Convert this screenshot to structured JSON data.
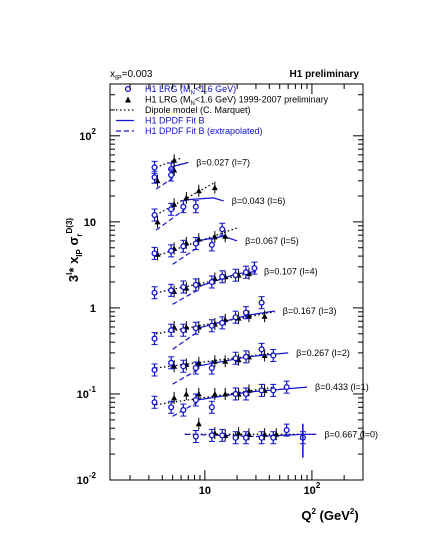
{
  "header": {
    "xpom_label": "x",
    "xpom_sub": "IP",
    "xpom_value": "=0.003",
    "experiment": "H1 preliminary"
  },
  "legend": [
    {
      "key": "lrg",
      "text": "H1 LRG (M",
      "sub": "N",
      "after": "<1.6 GeV)",
      "color": "#1010d0",
      "style": "circle"
    },
    {
      "key": "lrg0607",
      "text": "H1 LRG (M",
      "sub": "N",
      "after": "<1.6 GeV) 1999-2007 preliminary",
      "color": "#000000",
      "style": "triangle"
    },
    {
      "key": "dipole",
      "text": "Dipole model (C. Marquet)",
      "color": "#000000",
      "style": "dotted"
    },
    {
      "key": "fitb",
      "text": "H1 DPDF Fit B",
      "color": "#1010d0",
      "style": "solid"
    },
    {
      "key": "fitbext",
      "text": "H1 DPDF Fit B (extrapolated)",
      "color": "#1010d0",
      "style": "dashed"
    }
  ],
  "chart_data": {
    "type": "scatter",
    "title": "",
    "xlabel": "Q² (GeV²)",
    "ylabel": "3^l * x_IP σ_r^D(3)",
    "xscale": "log",
    "yscale": "log",
    "xlim": [
      1.3,
      300
    ],
    "ylim": [
      0.01,
      400
    ],
    "x_ticks": [
      {
        "v": 10,
        "label": "10"
      },
      {
        "v": 100,
        "label": "10",
        "sup": "2"
      }
    ],
    "y_ticks": [
      {
        "v": 0.01,
        "label": "10",
        "sup": "-2"
      },
      {
        "v": 0.1,
        "label": "10",
        "sup": "-1"
      },
      {
        "v": 1,
        "label": "1"
      },
      {
        "v": 10,
        "label": "10"
      },
      {
        "v": 100,
        "label": "10",
        "sup": "2"
      }
    ],
    "grid": false,
    "legend_position": "top-left",
    "groups": [
      {
        "label": "β=0.027 (l=7)",
        "blue": [
          [
            3.5,
            43
          ],
          [
            3.5,
            33
          ],
          [
            5,
            41
          ],
          [
            5,
            35
          ]
        ],
        "black": [
          [
            5,
            52
          ],
          [
            5,
            40
          ],
          [
            3.5,
            30
          ]
        ],
        "dipole": [
          [
            3.5,
            43
          ],
          [
            6,
            55
          ]
        ],
        "fit": [
          [
            5,
            44
          ],
          [
            7,
            49
          ]
        ],
        "fitext": [
          [
            3.5,
            24
          ],
          [
            5,
            32
          ]
        ]
      },
      {
        "label": "β=0.043 (l=6)",
        "blue": [
          [
            3.5,
            12
          ],
          [
            5,
            14
          ],
          [
            6.5,
            15
          ],
          [
            8.5,
            15
          ]
        ],
        "black": [
          [
            3.5,
            10
          ],
          [
            5,
            16
          ],
          [
            6.5,
            19
          ],
          [
            8.5,
            23
          ],
          [
            12,
            25
          ]
        ],
        "dipole": [
          [
            3.5,
            12
          ],
          [
            12,
            28
          ]
        ],
        "fit": [
          [
            6.5,
            18
          ],
          [
            12,
            19
          ],
          [
            15,
            17.5
          ]
        ],
        "fitext": [
          [
            3.5,
            8
          ],
          [
            6.5,
            14
          ]
        ]
      },
      {
        "label": "β=0.067 (l=5)",
        "blue": [
          [
            3.5,
            4.3
          ],
          [
            5,
            4.6
          ],
          [
            6.5,
            5.2
          ],
          [
            8.5,
            5.6
          ],
          [
            12,
            5.4
          ],
          [
            15,
            8.2
          ]
        ],
        "black": [
          [
            3.5,
            4.2
          ],
          [
            5,
            4.9
          ],
          [
            6.5,
            5.7
          ],
          [
            8.5,
            6.3
          ],
          [
            12,
            6.7
          ],
          [
            15,
            6.8
          ]
        ],
        "dipole": [
          [
            3.5,
            4
          ],
          [
            20,
            8.5
          ]
        ],
        "fit": [
          [
            8.5,
            6
          ],
          [
            15,
            6.8
          ],
          [
            20,
            6
          ]
        ],
        "fitext": [
          [
            5,
            3.2
          ],
          [
            8.5,
            5
          ]
        ]
      },
      {
        "label": "β=0.107 (l=4)",
        "blue": [
          [
            3.5,
            1.5
          ],
          [
            5,
            1.6
          ],
          [
            6.5,
            1.75
          ],
          [
            8.5,
            1.85
          ],
          [
            12,
            2
          ],
          [
            15,
            2.3
          ],
          [
            20,
            2.4
          ],
          [
            25,
            2.6
          ],
          [
            30,
            2.9
          ]
        ],
        "black": [
          [
            5,
            1.55
          ],
          [
            6.5,
            1.7
          ],
          [
            8.5,
            1.9
          ],
          [
            12,
            2.2
          ],
          [
            15,
            2.3
          ],
          [
            20,
            2.4
          ],
          [
            25,
            2.5
          ]
        ],
        "dipole": [
          [
            3.5,
            1.5
          ],
          [
            30,
            2.6
          ]
        ],
        "fit": [
          [
            8.5,
            1.75
          ],
          [
            20,
            2.5
          ],
          [
            30,
            2.65
          ]
        ],
        "fitext": [
          [
            5,
            1.1
          ],
          [
            8.5,
            1.6
          ]
        ]
      },
      {
        "label": "β=0.167 (l=3)",
        "blue": [
          [
            3.5,
            0.44
          ],
          [
            5,
            0.55
          ],
          [
            6.5,
            0.55
          ],
          [
            8.5,
            0.58
          ],
          [
            12,
            0.62
          ],
          [
            15,
            0.67
          ],
          [
            20,
            0.78
          ],
          [
            25,
            0.88
          ],
          [
            35,
            1.15
          ]
        ],
        "black": [
          [
            5,
            0.6
          ],
          [
            6.5,
            0.6
          ],
          [
            8.5,
            0.6
          ],
          [
            12,
            0.65
          ],
          [
            15,
            0.73
          ],
          [
            20,
            0.76
          ],
          [
            25,
            0.8
          ],
          [
            35,
            0.8
          ]
        ],
        "dipole": [
          [
            3.5,
            0.5
          ],
          [
            45,
            0.9
          ]
        ],
        "fit": [
          [
            8.5,
            0.58
          ],
          [
            25,
            0.82
          ],
          [
            45,
            0.92
          ]
        ],
        "fitext": [
          [
            5,
            0.33
          ],
          [
            8.5,
            0.52
          ]
        ]
      },
      {
        "label": "β=0.267 (l=2)",
        "blue": [
          [
            3.5,
            0.19
          ],
          [
            5,
            0.23
          ],
          [
            6.5,
            0.21
          ],
          [
            8.5,
            0.2
          ],
          [
            12,
            0.2
          ],
          [
            20,
            0.26
          ],
          [
            25,
            0.27
          ],
          [
            35,
            0.33
          ],
          [
            45,
            0.28
          ]
        ],
        "black": [
          [
            5,
            0.21
          ],
          [
            6.5,
            0.22
          ],
          [
            8.5,
            0.23
          ],
          [
            12,
            0.24
          ],
          [
            15,
            0.24
          ],
          [
            20,
            0.25
          ],
          [
            25,
            0.27
          ],
          [
            35,
            0.28
          ]
        ],
        "dipole": [
          [
            3.5,
            0.2
          ],
          [
            45,
            0.3
          ]
        ],
        "fit": [
          [
            8.5,
            0.21
          ],
          [
            25,
            0.27
          ],
          [
            60,
            0.3
          ]
        ],
        "fitext": [
          [
            5,
            0.13
          ],
          [
            8.5,
            0.19
          ]
        ]
      },
      {
        "label": "β=0.433 (l=1)",
        "blue": [
          [
            3.5,
            0.08
          ],
          [
            5,
            0.07
          ],
          [
            6.5,
            0.065
          ],
          [
            8.5,
            0.085
          ],
          [
            12,
            0.07
          ],
          [
            20,
            0.1
          ],
          [
            25,
            0.1
          ],
          [
            35,
            0.11
          ],
          [
            45,
            0.11
          ],
          [
            60,
            0.12
          ]
        ],
        "black": [
          [
            5,
            0.09
          ],
          [
            6.5,
            0.1
          ],
          [
            8.5,
            0.1
          ],
          [
            12,
            0.1
          ],
          [
            15,
            0.1
          ],
          [
            20,
            0.1
          ],
          [
            25,
            0.11
          ],
          [
            35,
            0.11
          ]
        ],
        "dipole": [
          [
            3.5,
            0.075
          ],
          [
            45,
            0.12
          ]
        ],
        "fit": [
          [
            8.5,
            0.085
          ],
          [
            25,
            0.105
          ],
          [
            90,
            0.12
          ]
        ],
        "fitext": [
          [
            5,
            0.055
          ],
          [
            8.5,
            0.08
          ]
        ]
      },
      {
        "label": "β=0.667 (l=0)",
        "blue": [
          [
            8.5,
            0.032
          ],
          [
            12,
            0.033
          ],
          [
            15,
            0.033
          ],
          [
            20,
            0.031
          ],
          [
            25,
            0.031
          ],
          [
            35,
            0.031
          ],
          [
            45,
            0.031
          ],
          [
            60,
            0.038
          ],
          [
            85,
            0.031
          ]
        ],
        "black": [
          [
            8.5,
            0.045
          ],
          [
            12,
            0.035
          ],
          [
            15,
            0.033
          ],
          [
            20,
            0.035
          ],
          [
            25,
            0.034
          ],
          [
            35,
            0.034
          ],
          [
            45,
            0.034
          ]
        ],
        "dipole": [
          [
            6.5,
            0.034
          ],
          [
            110,
            0.034
          ]
        ],
        "fit": [
          [
            30,
            0.032
          ],
          [
            85,
            0.034
          ],
          [
            110,
            0.034
          ]
        ],
        "fitext": [
          [
            6.5,
            0.034
          ],
          [
            30,
            0.032
          ]
        ]
      }
    ]
  }
}
